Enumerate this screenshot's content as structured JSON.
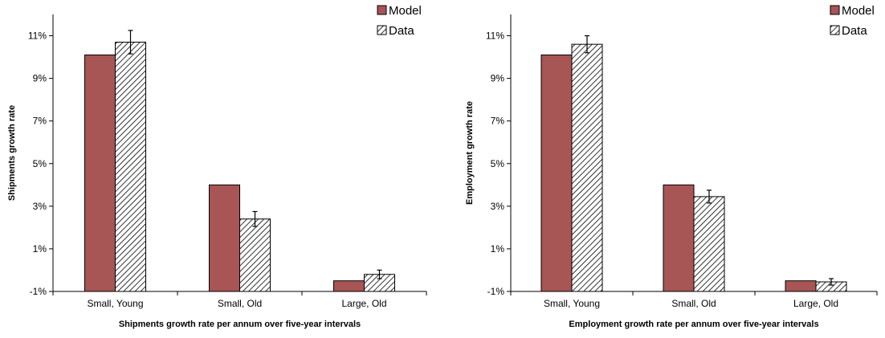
{
  "colors": {
    "model": "#a85555",
    "data_hatch": "#000000",
    "axis": "#000000",
    "background": "#ffffff"
  },
  "chart_data": [
    {
      "type": "bar",
      "categories": [
        "Small, Young",
        "Small, Old",
        "Large, Old"
      ],
      "series": [
        {
          "name": "Model",
          "values": [
            10.1,
            4.0,
            -0.5
          ]
        },
        {
          "name": "Data",
          "values": [
            10.7,
            2.4,
            -0.2
          ],
          "error": [
            0.55,
            0.35,
            0.2
          ]
        }
      ],
      "xlabel": "Shipments growth rate per annum over five-year intervals",
      "ylabel": "Shipments growth rate",
      "ylim": [
        -1,
        12
      ],
      "yticks": [
        -1,
        1,
        3,
        5,
        7,
        9,
        11
      ],
      "ytick_labels": [
        "-1%",
        "1%",
        "3%",
        "5%",
        "7%",
        "9%",
        "11%"
      ],
      "legend": "top-right",
      "grid": false
    },
    {
      "type": "bar",
      "categories": [
        "Small, Young",
        "Small, Old",
        "Large, Old"
      ],
      "series": [
        {
          "name": "Model",
          "values": [
            10.1,
            4.0,
            -0.5
          ]
        },
        {
          "name": "Data",
          "values": [
            10.6,
            3.45,
            -0.55
          ],
          "error": [
            0.4,
            0.3,
            0.15
          ]
        }
      ],
      "xlabel": "Employment growth rate per annum over five-year intervals",
      "ylabel": "Employment growth rate",
      "ylim": [
        -1,
        12
      ],
      "yticks": [
        -1,
        1,
        3,
        5,
        7,
        9,
        11
      ],
      "ytick_labels": [
        "-1%",
        "1%",
        "3%",
        "5%",
        "7%",
        "9%",
        "11%"
      ],
      "legend": "top-right",
      "grid": false
    }
  ]
}
